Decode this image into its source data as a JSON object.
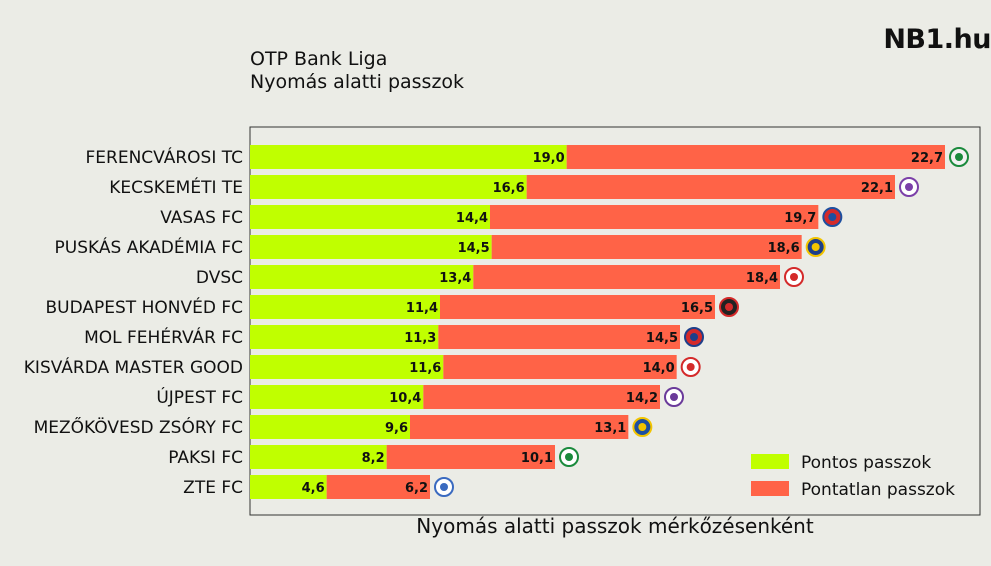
{
  "header": {
    "title_line1": "OTP Bank Liga",
    "title_line2": "Nyomás alatti passzok",
    "brand": "NB1.hu"
  },
  "chart_data": {
    "type": "bar",
    "orientation": "horizontal",
    "stacked": true,
    "title": "OTP Bank Liga – Nyomás alatti passzok",
    "xlabel": "Nyomás alatti passzok mérkőzésenként",
    "ylabel": "",
    "xlim": [
      0,
      43.8
    ],
    "grid": false,
    "legend_position": "bottom-right",
    "categories": [
      "FERENCVÁROSI TC",
      "KECSKEMÉTI TE",
      "VASAS FC",
      "PUSKÁS AKADÉMIA FC",
      "DVSC",
      "BUDAPEST HONVÉD FC",
      "MOL FEHÉRVÁR FC",
      "KISVÁRDA MASTER GOOD",
      "ÚJPEST FC",
      "MEZŐKÖVESD ZSÓRY FC",
      "PAKSI FC",
      "ZTE FC"
    ],
    "series": [
      {
        "name": "Pontos passzok",
        "color": "#c0ff00",
        "values": [
          19.0,
          16.6,
          14.4,
          14.5,
          13.4,
          11.4,
          11.3,
          11.6,
          10.4,
          9.6,
          8.2,
          4.6
        ],
        "labels": [
          "19,0",
          "16,6",
          "14,4",
          "14,5",
          "13,4",
          "11,4",
          "11,3",
          "11,6",
          "10,4",
          "9,6",
          "8,2",
          "4,6"
        ]
      },
      {
        "name": "Pontatlan passzok",
        "color": "#ff6347",
        "values": [
          22.7,
          22.1,
          19.7,
          18.6,
          18.4,
          16.5,
          14.5,
          14.0,
          14.2,
          13.1,
          10.1,
          6.2
        ],
        "labels": [
          "22,7",
          "22,1",
          "19,7",
          "18,6",
          "18,4",
          "16,5",
          "14,5",
          "14,0",
          "14,2",
          "13,1",
          "10,1",
          "6,2"
        ]
      }
    ],
    "logo_colors": [
      [
        "#1a8a3c",
        "#f2f2f2"
      ],
      [
        "#7b3fa8",
        "#ffffff"
      ],
      [
        "#1d4fa0",
        "#d42a2a"
      ],
      [
        "#f2c400",
        "#1d3f8a"
      ],
      [
        "#d42a2a",
        "#ffffff"
      ],
      [
        "#d42a2a",
        "#222222"
      ],
      [
        "#1d3f8a",
        "#d42a2a"
      ],
      [
        "#d42a2a",
        "#ffffff"
      ],
      [
        "#6a3a9a",
        "#ffffff"
      ],
      [
        "#f2c400",
        "#1d4fa0"
      ],
      [
        "#1a8a3c",
        "#ffffff"
      ],
      [
        "#3a6ac0",
        "#ffffff"
      ]
    ]
  }
}
